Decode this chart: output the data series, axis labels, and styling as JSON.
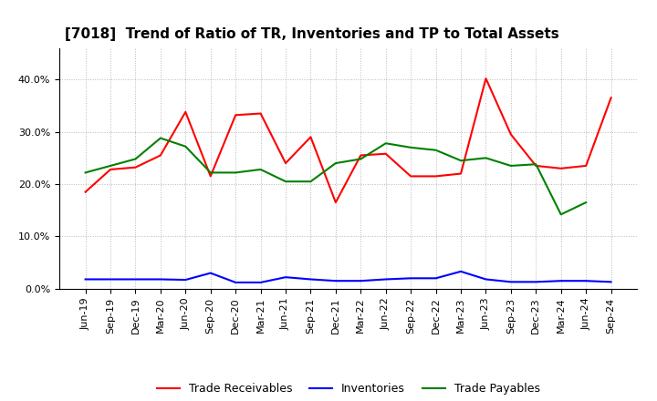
{
  "title": "[7018]  Trend of Ratio of TR, Inventories and TP to Total Assets",
  "x_labels": [
    "Jun-19",
    "Sep-19",
    "Dec-19",
    "Mar-20",
    "Jun-20",
    "Sep-20",
    "Dec-20",
    "Mar-21",
    "Jun-21",
    "Sep-21",
    "Dec-21",
    "Mar-22",
    "Jun-22",
    "Sep-22",
    "Dec-22",
    "Mar-23",
    "Jun-23",
    "Sep-23",
    "Dec-23",
    "Mar-24",
    "Jun-24",
    "Sep-24"
  ],
  "trade_receivables": [
    0.185,
    0.228,
    0.232,
    0.255,
    0.338,
    0.215,
    0.332,
    0.335,
    0.24,
    0.29,
    0.165,
    0.255,
    0.258,
    0.215,
    0.215,
    0.22,
    0.402,
    0.295,
    0.235,
    0.23,
    0.235,
    0.365
  ],
  "inventories": [
    0.018,
    0.018,
    0.018,
    0.018,
    0.017,
    0.03,
    0.012,
    0.012,
    0.022,
    0.018,
    0.015,
    0.015,
    0.018,
    0.02,
    0.02,
    0.033,
    0.018,
    0.013,
    0.013,
    0.015,
    0.015,
    0.013
  ],
  "trade_payables": [
    0.222,
    0.235,
    0.248,
    0.288,
    0.272,
    0.222,
    0.222,
    0.228,
    0.205,
    0.205,
    0.24,
    0.248,
    0.278,
    0.27,
    0.265,
    0.245,
    0.25,
    0.235,
    0.238,
    0.142,
    0.165,
    null
  ],
  "colors": {
    "trade_receivables": "#ff0000",
    "inventories": "#0000ff",
    "trade_payables": "#008000"
  },
  "ylim": [
    0.0,
    0.46
  ],
  "yticks": [
    0.0,
    0.1,
    0.2,
    0.3,
    0.4
  ],
  "ytick_labels": [
    "0.0%",
    "10.0%",
    "20.0%",
    "30.0%",
    "40.0%"
  ],
  "legend_labels": [
    "Trade Receivables",
    "Inventories",
    "Trade Payables"
  ],
  "background_color": "#ffffff",
  "grid_color": "#888888",
  "title_fontsize": 11,
  "tick_fontsize": 8,
  "legend_fontsize": 9
}
